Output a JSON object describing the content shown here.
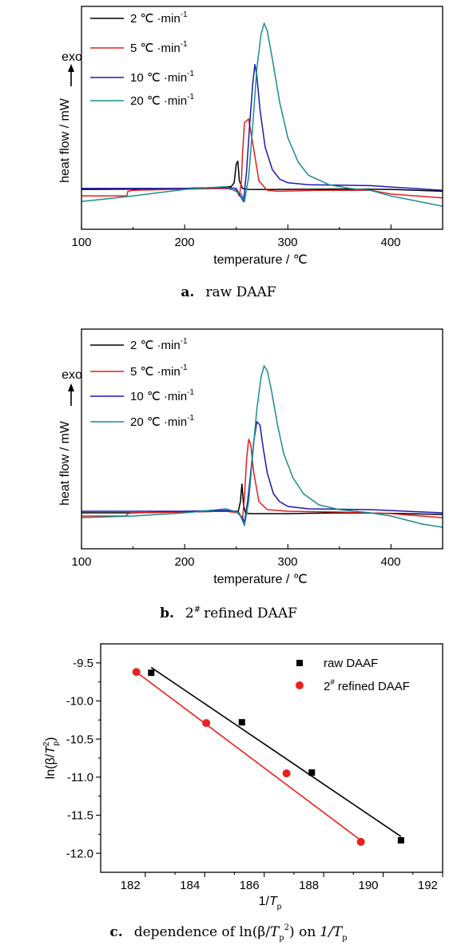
{
  "chart_data": [
    {
      "type": "line",
      "caption_letter": "a.",
      "caption_text": "raw DAAF",
      "xlabel": "temperature / ℃",
      "ylabel": "heat flow / mW",
      "exo_label": "exo",
      "xlim": [
        100,
        450
      ],
      "xticks": [
        "100",
        "200",
        "300",
        "400"
      ],
      "legend": "top-left",
      "series": [
        {
          "name": "2 ℃ ·min",
          "sup": "-1",
          "color": "#000000",
          "x": [
            100,
            150,
            200,
            230,
            245,
            248,
            250,
            251.5,
            253,
            256,
            262,
            280,
            350,
            400,
            450
          ],
          "y": [
            0.055,
            0.056,
            0.06,
            0.065,
            0.07,
            0.09,
            0.19,
            0.205,
            0.1,
            0.06,
            0.055,
            0.054,
            0.057,
            0.055,
            0.045
          ]
        },
        {
          "name": "5 ℃ ·min",
          "sup": "-1",
          "color": "#e0201e",
          "x": [
            100,
            144,
            145,
            150,
            200,
            240,
            250,
            253,
            255,
            256,
            258,
            262,
            266,
            272,
            280,
            290,
            330,
            380,
            400,
            450
          ],
          "y": [
            0.02,
            0.02,
            0.045,
            0.05,
            0.056,
            0.06,
            0.05,
            0.02,
            0.1,
            0.24,
            0.41,
            0.43,
            0.3,
            0.1,
            0.05,
            0.045,
            0.05,
            0.05,
            0.03,
            0.01
          ]
        },
        {
          "name": "10 ℃ ·min",
          "sup": "-1",
          "color": "#1d18b0",
          "x": [
            100,
            200,
            240,
            250,
            255,
            257,
            260,
            263,
            266,
            268,
            270,
            273,
            278,
            285,
            292,
            300,
            320,
            380,
            450
          ],
          "y": [
            0.06,
            0.06,
            0.065,
            0.06,
            0.01,
            -0.01,
            0.15,
            0.4,
            0.62,
            0.72,
            0.66,
            0.48,
            0.28,
            0.16,
            0.11,
            0.09,
            0.08,
            0.075,
            0.05
          ]
        },
        {
          "name": "20 ℃ ·min",
          "sup": "-1",
          "color": "#1b8c8a",
          "x": [
            100,
            150,
            200,
            240,
            255,
            258,
            262,
            266,
            270,
            274,
            277,
            280,
            285,
            292,
            300,
            310,
            320,
            340,
            360,
            380,
            400,
            450
          ],
          "y": [
            -0.01,
            0.02,
            0.055,
            0.07,
            0.03,
            -0.01,
            0.12,
            0.4,
            0.7,
            0.88,
            0.94,
            0.9,
            0.75,
            0.52,
            0.33,
            0.2,
            0.13,
            0.08,
            0.06,
            0.05,
            0.02,
            -0.035
          ]
        }
      ]
    },
    {
      "type": "line",
      "caption_letter": "b.",
      "caption_text": "refined DAAF",
      "caption_prefix": "2",
      "caption_sup": "#",
      "xlabel": "temperature / ℃",
      "ylabel": "heat flow / mW",
      "exo_label": "exo",
      "xlim": [
        100,
        450
      ],
      "xticks": [
        "100",
        "200",
        "300",
        "400"
      ],
      "legend": "top-left",
      "series": [
        {
          "name": "2 ℃ ·min",
          "sup": "-1",
          "color": "#000000",
          "x": [
            100,
            150,
            200,
            240,
            252,
            254,
            255.5,
            257,
            259,
            263,
            300,
            350,
            400,
            450
          ],
          "y": [
            0.05,
            0.05,
            0.055,
            0.06,
            0.06,
            0.12,
            0.23,
            0.1,
            0.05,
            0.045,
            0.045,
            0.05,
            0.047,
            0.04
          ]
        },
        {
          "name": "5 ℃ ·min",
          "sup": "-1",
          "color": "#e0201e",
          "x": [
            100,
            143,
            145,
            150,
            200,
            240,
            252,
            256,
            258,
            260,
            262,
            264,
            267,
            272,
            280,
            300,
            350,
            400,
            450
          ],
          "y": [
            0.03,
            0.03,
            0.045,
            0.05,
            0.055,
            0.06,
            0.05,
            0.01,
            0.15,
            0.38,
            0.51,
            0.48,
            0.3,
            0.12,
            0.07,
            0.06,
            0.055,
            0.045,
            0.02
          ]
        },
        {
          "name": "10 ℃ ·min",
          "sup": "-1",
          "color": "#1d18b0",
          "x": [
            100,
            200,
            240,
            250,
            256,
            258,
            261,
            264,
            267,
            270,
            273,
            276,
            280,
            286,
            292,
            300,
            320,
            380,
            450
          ],
          "y": [
            0.06,
            0.06,
            0.065,
            0.06,
            0.02,
            -0.01,
            0.12,
            0.3,
            0.5,
            0.62,
            0.6,
            0.46,
            0.3,
            0.17,
            0.12,
            0.09,
            0.075,
            0.07,
            0.05
          ]
        },
        {
          "name": "20 ℃ ·min",
          "sup": "-1",
          "color": "#1b8c8a",
          "x": [
            100,
            150,
            200,
            240,
            253,
            256,
            258,
            262,
            266,
            270,
            274,
            277,
            280,
            284,
            290,
            296,
            305,
            315,
            330,
            350,
            380,
            400,
            430,
            450
          ],
          "y": [
            0.02,
            0.03,
            0.05,
            0.075,
            0.05,
            0.0,
            -0.03,
            0.12,
            0.42,
            0.7,
            0.9,
            0.97,
            0.94,
            0.82,
            0.6,
            0.42,
            0.27,
            0.17,
            0.1,
            0.07,
            0.05,
            0.03,
            -0.02,
            -0.04
          ]
        }
      ]
    },
    {
      "type": "scatter",
      "caption_letter": "c.",
      "caption_text_a": "dependence of ln(β/",
      "caption_T": "T",
      "caption_sub": "p",
      "caption_sup": "2",
      "caption_text_b": ") on",
      "caption_inv": "1/",
      "xlabel_main": "1/",
      "xlabel_T": "T",
      "xlabel_sub": "p",
      "ylabel_a": "ln(β/",
      "ylabel_T": "T",
      "ylabel_sup": "2",
      "ylabel_sub": "p",
      "ylabel_b": ")",
      "xlim": [
        180.5,
        192
      ],
      "ylim": [
        -12.25,
        -9.25
      ],
      "xticks": [
        "182",
        "184",
        "186",
        "188",
        "190",
        "192"
      ],
      "yticks": [
        "-9.5",
        "-10.0",
        "-10.5",
        "-11.0",
        "-11.5",
        "-12.0"
      ],
      "legend": "top-right",
      "series": [
        {
          "name": "raw DAAF",
          "marker": "square",
          "color": "#000000",
          "x": [
            182.2,
            185.25,
            187.6,
            190.6
          ],
          "y": [
            -9.63,
            -10.28,
            -10.94,
            -11.83
          ],
          "fit": [
            [
              182.2,
              -9.56
            ],
            [
              190.6,
              -11.78
            ]
          ]
        },
        {
          "name": "refined DAAF",
          "name_prefix": "2",
          "name_sup": "#",
          "marker": "circle",
          "color": "#e8211c",
          "x": [
            181.7,
            184.05,
            186.75,
            189.25
          ],
          "y": [
            -9.62,
            -10.29,
            -10.95,
            -11.85
          ],
          "fit": [
            [
              181.7,
              -9.62
            ],
            [
              189.25,
              -11.83
            ]
          ]
        }
      ]
    }
  ]
}
